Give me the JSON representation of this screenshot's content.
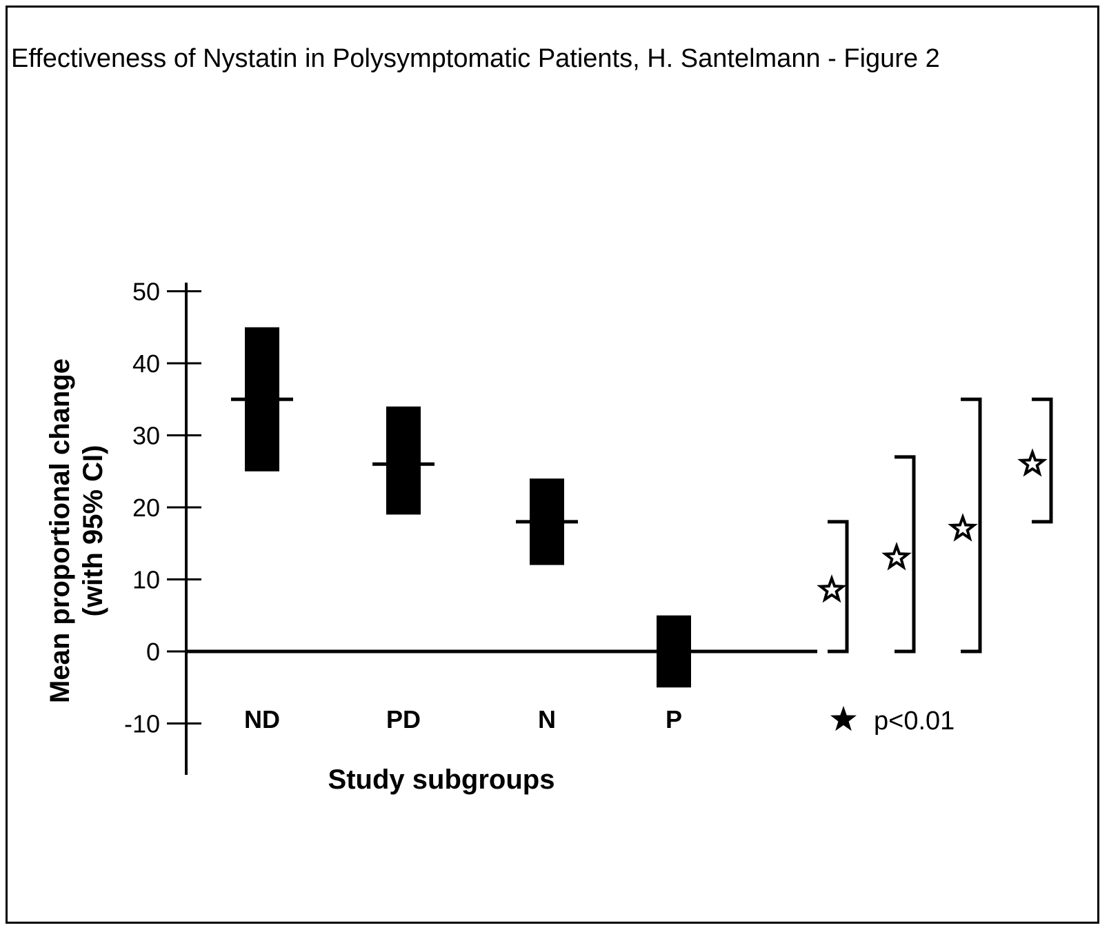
{
  "title": "Effectiveness of Nystatin in Polysymptomatic Patients, H. Santelmann - Figure 2",
  "legend": {
    "symbol": "★",
    "text": "p<0.01"
  },
  "chart_data": {
    "type": "bar",
    "subtype": "confidence-interval",
    "categories": [
      "ND",
      "PD",
      "N",
      "P"
    ],
    "series": [
      {
        "means": [
          35,
          26,
          18,
          0
        ],
        "ci_low": [
          25,
          19,
          12,
          -5
        ],
        "ci_high": [
          45,
          34,
          24,
          5
        ]
      }
    ],
    "xlabel": "Study subgroups",
    "ylabel_lines": [
      "Mean proportional change",
      "(with 95% CI)"
    ],
    "ylim": [
      -15,
      52
    ],
    "yticks": [
      -10,
      0,
      10,
      20,
      30,
      40,
      50
    ],
    "ytick_labels": [
      "-10",
      "0",
      "10",
      "20",
      "30",
      "40",
      "50"
    ],
    "significance_brackets": [
      {
        "from": 0,
        "to": 18
      },
      {
        "from": 0,
        "to": 27
      },
      {
        "from": 0,
        "to": 35
      },
      {
        "from": 18,
        "to": 35
      }
    ],
    "grid": false,
    "legend_position": "bottom-right"
  }
}
